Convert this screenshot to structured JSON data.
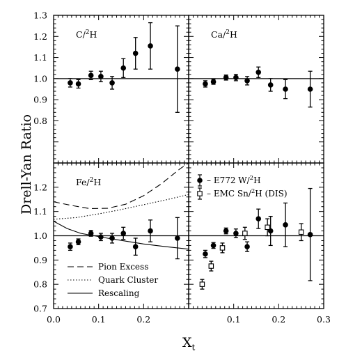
{
  "chart_data": {
    "type": "scatter",
    "ylabel": "Drell-Yan Ratio",
    "xlabel_main": "X",
    "xlabel_sub": "t",
    "xlim": [
      0.0,
      0.3
    ],
    "x_ticks": [
      "0.0",
      "0.1",
      "0.2",
      "0.3"
    ],
    "top_ylim": [
      0.6,
      1.3
    ],
    "top_y_ticks": [
      "1.3",
      "1.2",
      "1.1",
      "1.0",
      "0.9",
      "0.8"
    ],
    "bottom_ylim": [
      0.7,
      1.3
    ],
    "bottom_y_ticks": [
      "1.2",
      "1.1",
      "1.0",
      "0.9",
      "0.8",
      "0.7"
    ],
    "panels": [
      {
        "label_main": "C/",
        "label_sup": "2",
        "label_tail": "H",
        "position": "top-left",
        "ylim": [
          0.6,
          1.3
        ],
        "series": [
          {
            "marker": "filled-circle",
            "x": [
              0.037,
              0.055,
              0.083,
              0.105,
              0.13,
              0.155,
              0.182,
              0.215,
              0.275
            ],
            "y": [
              0.98,
              0.975,
              1.015,
              1.01,
              0.98,
              1.05,
              1.12,
              1.155,
              1.045
            ],
            "err": [
              0.02,
              0.02,
              0.02,
              0.025,
              0.03,
              0.045,
              0.075,
              0.11,
              0.205
            ]
          }
        ]
      },
      {
        "label_main": "Ca/",
        "label_sup": "2",
        "label_tail": "H",
        "position": "top-right",
        "ylim": [
          0.6,
          1.3
        ],
        "series": [
          {
            "marker": "filled-circle",
            "x": [
              0.037,
              0.055,
              0.083,
              0.105,
              0.13,
              0.155,
              0.182,
              0.215,
              0.27
            ],
            "y": [
              0.975,
              0.985,
              1.005,
              1.005,
              0.99,
              1.03,
              0.97,
              0.95,
              0.95
            ],
            "err": [
              0.015,
              0.012,
              0.012,
              0.015,
              0.02,
              0.025,
              0.03,
              0.045,
              0.085
            ]
          }
        ]
      },
      {
        "label_main": "Fe/",
        "label_sup": "2",
        "label_tail": "H",
        "position": "bottom-left",
        "ylim": [
          0.7,
          1.3
        ],
        "series": [
          {
            "marker": "filled-circle",
            "x": [
              0.037,
              0.055,
              0.083,
              0.105,
              0.13,
              0.155,
              0.182,
              0.215,
              0.275
            ],
            "y": [
              0.955,
              0.975,
              1.01,
              0.995,
              0.99,
              1.01,
              0.955,
              1.02,
              0.99
            ],
            "err": [
              0.015,
              0.012,
              0.012,
              0.015,
              0.02,
              0.025,
              0.035,
              0.045,
              0.085
            ]
          }
        ],
        "curves": [
          {
            "name": "Pion Excess",
            "style": "dashed",
            "x": [
              0.0,
              0.04,
              0.08,
              0.12,
              0.16,
              0.2,
              0.24,
              0.28,
              0.3
            ],
            "y": [
              1.14,
              1.125,
              1.112,
              1.113,
              1.13,
              1.165,
              1.215,
              1.275,
              1.3
            ]
          },
          {
            "name": "Quark Cluster",
            "style": "dotted",
            "x": [
              0.0,
              0.05,
              0.1,
              0.15,
              0.2,
              0.25,
              0.3
            ],
            "y": [
              1.068,
              1.075,
              1.09,
              1.108,
              1.128,
              1.148,
              1.17
            ]
          },
          {
            "name": "Rescaling",
            "style": "solid",
            "x": [
              0.0,
              0.03,
              0.06,
              0.09,
              0.12,
              0.16,
              0.2,
              0.25,
              0.3
            ],
            "y": [
              1.06,
              1.03,
              1.01,
              1.0,
              0.99,
              0.978,
              0.966,
              0.955,
              0.945
            ]
          }
        ]
      },
      {
        "position": "bottom-right",
        "ylim": [
          0.7,
          1.3
        ],
        "series": [
          {
            "name": "E772 W/²H",
            "marker": "filled-circle",
            "x": [
              0.037,
              0.055,
              0.083,
              0.105,
              0.13,
              0.155,
              0.182,
              0.215,
              0.27
            ],
            "y": [
              0.925,
              0.96,
              1.02,
              1.01,
              0.955,
              1.07,
              1.02,
              1.045,
              1.005
            ],
            "err": [
              0.015,
              0.012,
              0.012,
              0.018,
              0.02,
              0.04,
              0.06,
              0.09,
              0.19
            ]
          },
          {
            "name": "EMC Sn/²H (DIS)",
            "marker": "open-square",
            "x": [
              0.03,
              0.05,
              0.075,
              0.125,
              0.175,
              0.25
            ],
            "y": [
              0.8,
              0.875,
              0.95,
              1.01,
              1.035,
              1.015
            ],
            "err": [
              0.02,
              0.02,
              0.02,
              0.025,
              0.035,
              0.035
            ]
          }
        ]
      }
    ],
    "legend_bottom_left": [
      {
        "label": "Pion Excess",
        "style": "dashed"
      },
      {
        "label": "Quark Cluster",
        "style": "dotted"
      },
      {
        "label": "Rescaling",
        "style": "solid"
      }
    ],
    "legend_bottom_right": [
      {
        "main": "– E772 W/",
        "sup": "2",
        "tail": "H",
        "marker": "filled-circle"
      },
      {
        "main": "– EMC Sn/",
        "sup": "2",
        "tail": "H (DIS)",
        "marker": "open-square"
      }
    ],
    "reference_line_y": 1.0
  }
}
